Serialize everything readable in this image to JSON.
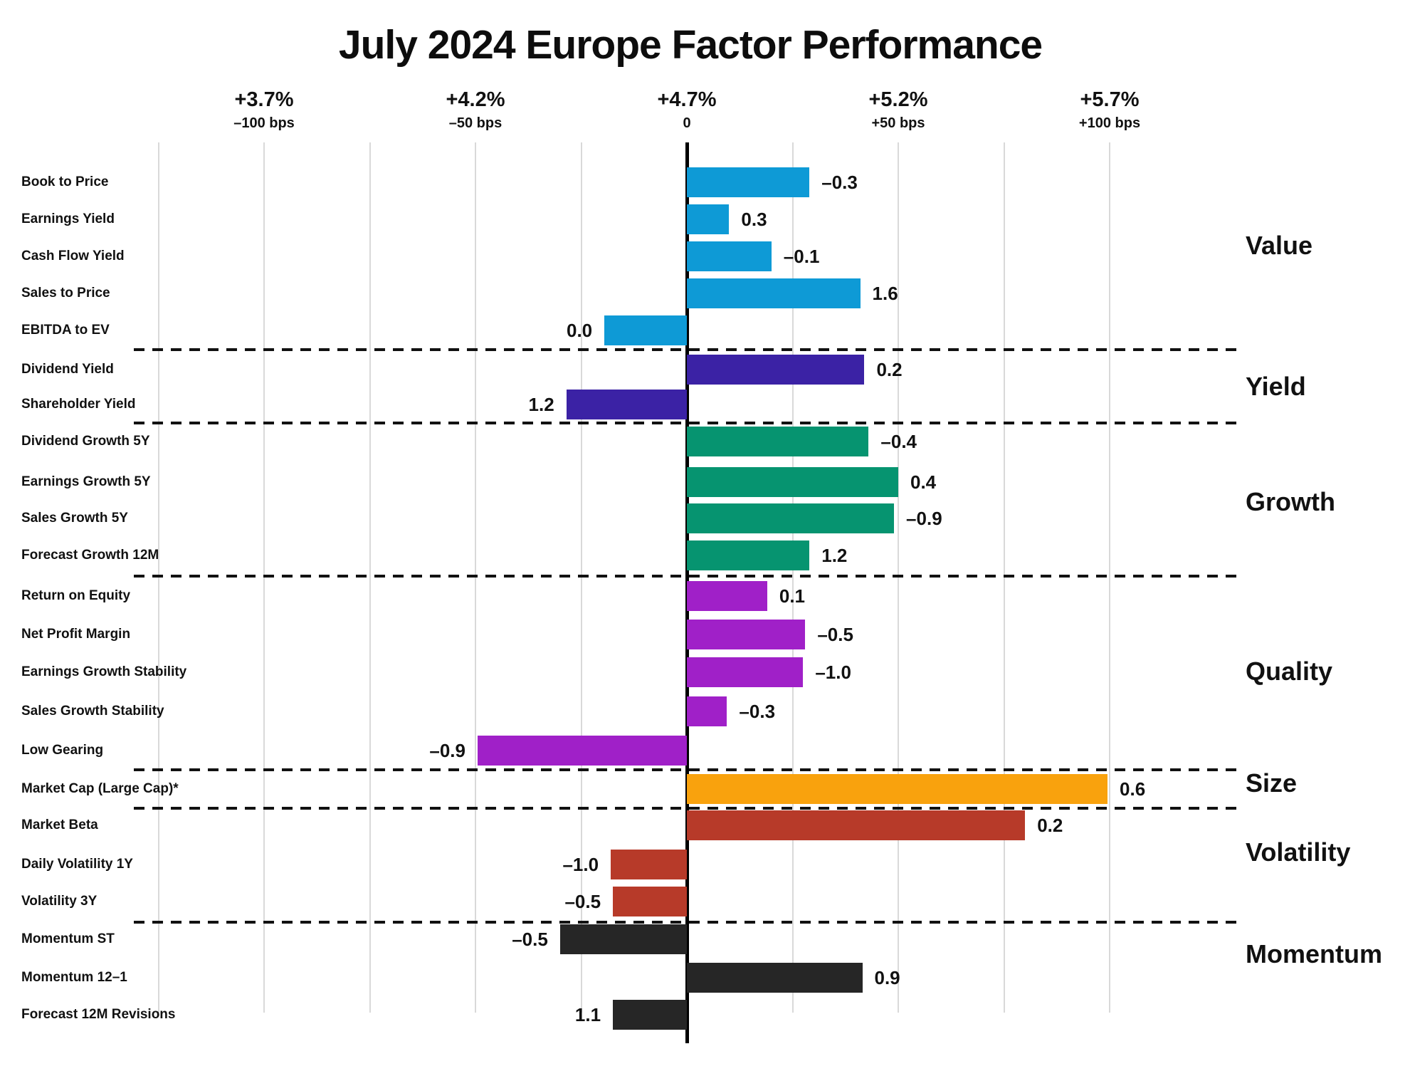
{
  "title": "July 2024 Europe Factor Performance",
  "chart_data": {
    "type": "bar",
    "orientation": "horizontal",
    "x_axis": {
      "unit": "bps",
      "range_bps": [
        -125,
        125
      ],
      "gridline_step_bps": 25,
      "ticks": [
        {
          "pct": "+3.7%",
          "bps_label": "–100 bps",
          "bps": -100
        },
        {
          "pct": "+4.2%",
          "bps_label": "–50 bps",
          "bps": -50
        },
        {
          "pct": "+4.7%",
          "bps_label": "0",
          "bps": 0
        },
        {
          "pct": "+5.2%",
          "bps_label": "+50 bps",
          "bps": 50
        },
        {
          "pct": "+5.7%",
          "bps_label": "+100 bps",
          "bps": 100
        }
      ]
    },
    "grid": "vertical-light-gray",
    "legend_position": "right-section-labels",
    "sections": [
      {
        "name": "Value",
        "color": "#0E9AD6",
        "rows": [
          {
            "factor": "Book to Price",
            "bar_bps": 29,
            "label": "–0.3"
          },
          {
            "factor": "Earnings Yield",
            "bar_bps": 10,
            "label": "0.3"
          },
          {
            "factor": "Cash Flow Yield",
            "bar_bps": 20,
            "label": "–0.1"
          },
          {
            "factor": "Sales to Price",
            "bar_bps": 41,
            "label": "1.6"
          },
          {
            "factor": "EBITDA to EV",
            "bar_bps": -19.5,
            "label": "0.0"
          }
        ]
      },
      {
        "name": "Yield",
        "color": "#3B22A5",
        "rows": [
          {
            "factor": "Dividend Yield",
            "bar_bps": 42,
            "label": "0.2"
          },
          {
            "factor": "Shareholder Yield",
            "bar_bps": -28.5,
            "label": "1.2"
          }
        ]
      },
      {
        "name": "Growth",
        "color": "#069470",
        "rows": [
          {
            "factor": "Dividend Growth 5Y",
            "bar_bps": 43,
            "label": "–0.4"
          },
          {
            "factor": "Earnings Growth 5Y",
            "bar_bps": 50,
            "label": "0.4"
          },
          {
            "factor": "Sales Growth 5Y",
            "bar_bps": 49,
            "label": "–0.9"
          },
          {
            "factor": "Forecast Growth 12M",
            "bar_bps": 29,
            "label": "1.2"
          }
        ]
      },
      {
        "name": "Quality",
        "color": "#A020C8",
        "rows": [
          {
            "factor": "Return on Equity",
            "bar_bps": 19,
            "label": "0.1"
          },
          {
            "factor": "Net Profit Margin",
            "bar_bps": 28,
            "label": "–0.5"
          },
          {
            "factor": "Earnings Growth Stability",
            "bar_bps": 27.5,
            "label": "–1.0"
          },
          {
            "factor": "Sales Growth Stability",
            "bar_bps": 9.5,
            "label": "–0.3"
          },
          {
            "factor": "Low Gearing",
            "bar_bps": -49.5,
            "label": "–0.9"
          }
        ]
      },
      {
        "name": "Size",
        "color": "#F9A20D",
        "rows": [
          {
            "factor": "Market Cap (Large Cap)*",
            "bar_bps": 99.5,
            "label": "0.6"
          }
        ]
      },
      {
        "name": "Volatility",
        "color": "#B73A29",
        "rows": [
          {
            "factor": "Market Beta",
            "bar_bps": 80,
            "label": "0.2"
          },
          {
            "factor": "Daily Volatility 1Y",
            "bar_bps": -18,
            "label": "–1.0"
          },
          {
            "factor": "Volatility 3Y",
            "bar_bps": -17.5,
            "label": "–0.5"
          }
        ]
      },
      {
        "name": "Momentum",
        "color": "#262626",
        "rows": [
          {
            "factor": "Momentum ST",
            "bar_bps": -30,
            "label": "–0.5"
          },
          {
            "factor": "Momentum 12–1",
            "bar_bps": 41.5,
            "label": "0.9"
          },
          {
            "factor": "Forecast 12M Revisions",
            "bar_bps": -17.5,
            "label": "1.1"
          }
        ]
      }
    ]
  }
}
